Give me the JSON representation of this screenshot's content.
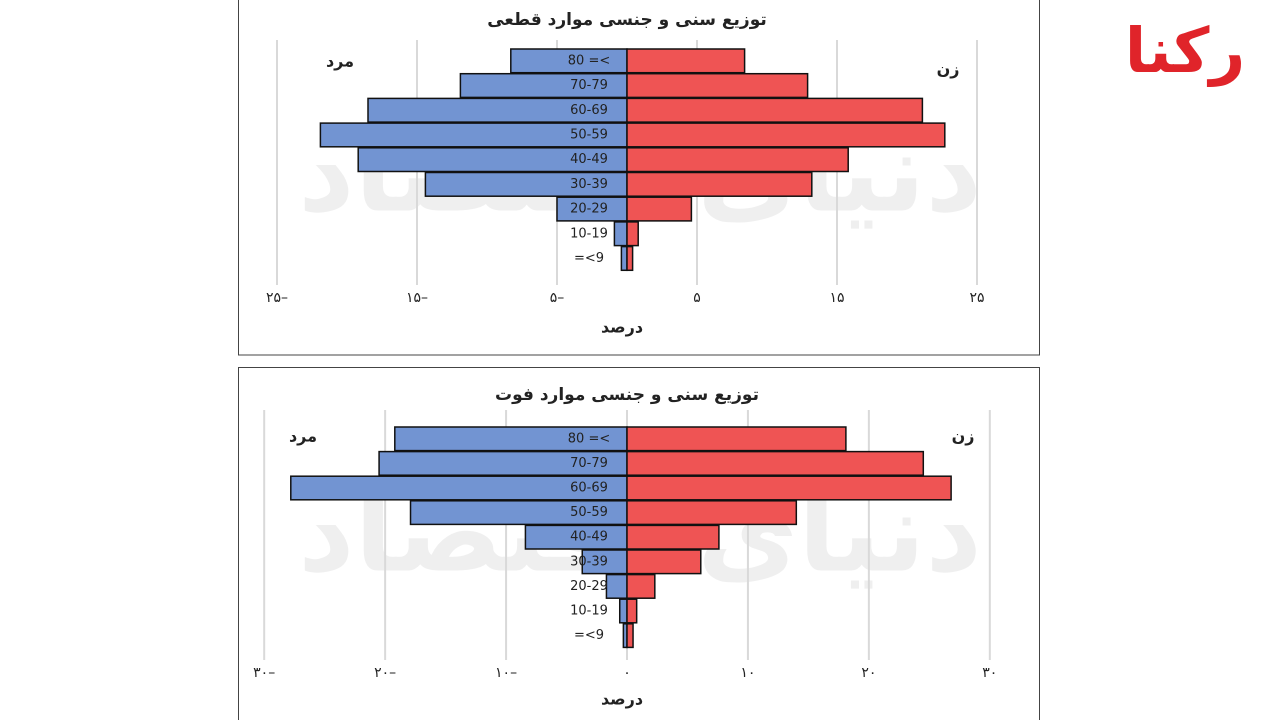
{
  "logo": "رکنا",
  "watermark": "دنیای اقتصاد",
  "chart_data": [
    {
      "type": "pyramid",
      "title": "توزیع سنی و جنسی موارد قطعی",
      "xlabel": "درصد",
      "categories": [
        "80 =<",
        "70-79",
        "60-69",
        "50-59",
        "40-49",
        "30-39",
        "20-29",
        "10-19",
        "=<9"
      ],
      "series": [
        {
          "name": "مرد",
          "color": "#7294d2",
          "values": [
            -8.3,
            -11.9,
            -18.5,
            -21.9,
            -19.2,
            -14.4,
            -5.0,
            -0.9,
            -0.4
          ]
        },
        {
          "name": "زن",
          "color": "#ef5454",
          "values": [
            8.4,
            12.9,
            21.1,
            22.7,
            15.8,
            13.2,
            4.6,
            0.8,
            0.4
          ]
        }
      ],
      "xlim": [
        -27,
        27
      ],
      "xticks": [
        {
          "value": -25,
          "label": "۲۵–"
        },
        {
          "value": -15,
          "label": "۱۵–"
        },
        {
          "value": -5,
          "label": "۵–"
        },
        {
          "value": 5,
          "label": "۵"
        },
        {
          "value": 15,
          "label": "۱۵"
        },
        {
          "value": 25,
          "label": "۲۵"
        }
      ],
      "grid": true
    },
    {
      "type": "pyramid",
      "title": "توزیع سنی و جنسی موارد فوت",
      "xlabel": "درصد",
      "categories": [
        "80 =<",
        "70-79",
        "60-69",
        "50-59",
        "40-49",
        "30-39",
        "20-29",
        "10-19",
        "=<9"
      ],
      "series": [
        {
          "name": "مرد",
          "color": "#7294d2",
          "values": [
            -19.2,
            -20.5,
            -27.8,
            -17.9,
            -8.4,
            -3.7,
            -1.7,
            -0.6,
            -0.3
          ]
        },
        {
          "name": "زن",
          "color": "#ef5454",
          "values": [
            18.1,
            24.5,
            26.8,
            14.0,
            7.6,
            6.1,
            2.3,
            0.8,
            0.5
          ]
        }
      ],
      "xlim": [
        -32,
        32
      ],
      "xticks": [
        {
          "value": -30,
          "label": "۳۰–"
        },
        {
          "value": -20,
          "label": "۲۰–"
        },
        {
          "value": -10,
          "label": "۱۰–"
        },
        {
          "value": 0,
          "label": "۰"
        },
        {
          "value": 10,
          "label": "۱۰"
        },
        {
          "value": 20,
          "label": "۲۰"
        },
        {
          "value": 30,
          "label": "۳۰"
        }
      ],
      "grid": true
    }
  ]
}
